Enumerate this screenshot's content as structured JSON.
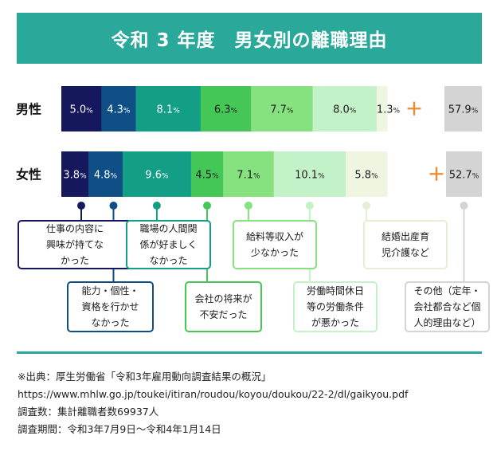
{
  "title": "令和 3 年度　男女別の離職理由",
  "chart_data": {
    "type": "stacked-bar-horizontal",
    "title": "令和 3 年度　男女別の離職理由",
    "categories": [
      "仕事の内容に興味が持てなかった",
      "能力・個性・資格を行かせなかった",
      "職場の人間関係が好ましくなかった",
      "会社の将来が不安だった",
      "給料等収入が少なかった",
      "労働時間休日等の労働条件が悪かった",
      "結婚出産育児介護など",
      "その他（定年・会社都合など個人的理由など）"
    ],
    "colors": [
      "#16185e",
      "#0f4f86",
      "#139f86",
      "#45c758",
      "#86e27e",
      "#c3f1c8",
      "#eef6e1",
      "#d4d4d4"
    ],
    "text_colors": [
      "#ffffff",
      "#ffffff",
      "#ffffff",
      "#1a1a1a",
      "#1a1a1a",
      "#1a1a1a",
      "#1a1a1a",
      "#1a1a1a"
    ],
    "series": [
      {
        "name": "男性",
        "values": [
          5.0,
          4.3,
          8.1,
          6.3,
          7.7,
          8.0,
          1.3,
          57.9
        ],
        "labels": [
          "5.0",
          "4.3",
          "8.1",
          "6.3",
          "7.7",
          "8.0",
          "1.3",
          "57.9"
        ]
      },
      {
        "name": "女性",
        "values": [
          3.8,
          4.8,
          9.6,
          4.5,
          7.1,
          10.1,
          5.8,
          52.7
        ],
        "labels": [
          "3.8",
          "4.8",
          "9.6",
          "4.5",
          "7.1",
          "10.1",
          "5.8",
          "52.7"
        ]
      }
    ],
    "unit": "%",
    "plus_symbol": "＋",
    "note": "その他 segment shown separately after ＋"
  },
  "callouts": [
    {
      "id": "interest",
      "text": "仕事の内容に\n興味が持てな\nかった",
      "color": "#16185e"
    },
    {
      "id": "ability",
      "text": "能力・個性・\n資格を行かせ\nなかった",
      "color": "#0f4f86"
    },
    {
      "id": "relations",
      "text": "職場の人間関\n係が好ましく\nなかった",
      "color": "#139f86"
    },
    {
      "id": "future",
      "text": "会社の将来が\n不安だった",
      "color": "#45c758"
    },
    {
      "id": "salary",
      "text": "給料等収入が\n少なかった",
      "color": "#86e27e"
    },
    {
      "id": "conditions",
      "text": "労働時間休日\n等の労働条件\nが悪かった",
      "color": "#c3f1c8"
    },
    {
      "id": "marriage",
      "text": "結婚出産育\n児介護など",
      "color": "#e4efd3"
    },
    {
      "id": "other",
      "text": "その他（定年・\n会社都合など個\n人的理由など）",
      "color": "#d4d4d4"
    }
  ],
  "source": {
    "line1": "※出典：厚生労働省「令和3年雇用動向調査結果の概況」",
    "url": "https://www.mhlw.go.jp/toukei/itiran/roudou/koyou/doukou/22-2/dl/gaikyou.pdf",
    "count": "調査数：集計離職者数69937人",
    "period": "調査期間：令和3年7月9日～令和4年1月14日"
  }
}
